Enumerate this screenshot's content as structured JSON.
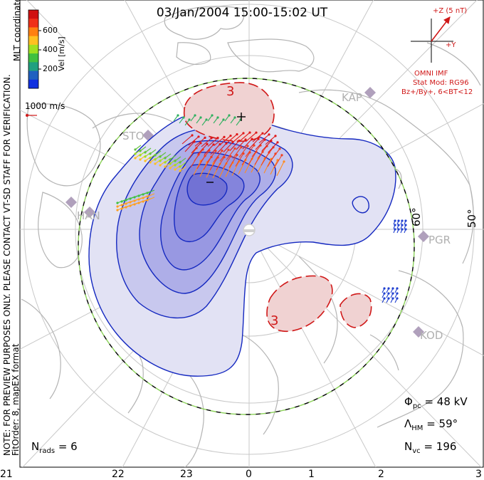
{
  "title": "03/Jan/2004 15:00-15:02 UT",
  "mlt_label": "MLT coordinates",
  "notice": "NOTE: FOR PREVIEW PURPOSES ONLY. PLEASE CONTACT VT-SD STAFF FOR VERIFICATION.",
  "fit_label": "FitOrder: 8, mapEX format",
  "velocity_scale": {
    "label": "Vel [m/s]",
    "ticks": [
      "600",
      "400",
      "200"
    ],
    "colors": [
      "#d01010",
      "#f03018",
      "#ff8010",
      "#ffc020",
      "#a0e020",
      "#40c040",
      "#20a080",
      "#2060c0",
      "#1030e0"
    ],
    "reference_label": "1000 m/s"
  },
  "imf": {
    "z_label": "+Z (5 nT)",
    "y_label": "+Y",
    "source": "OMNI IMF",
    "model": "Stat Mod: RG96",
    "condition": "Bz+/By+, 6<BT<12",
    "color": "#d01818"
  },
  "latitude_labels": [
    "60°",
    "50°"
  ],
  "contour_labels": [
    "3",
    "3"
  ],
  "stations": [
    "KAP",
    "STO",
    "HAN",
    "PGR",
    "KOD"
  ],
  "stats": {
    "phi_pc_symbol": "Φ",
    "phi_pc_sub": "pc",
    "phi_pc_value": "= 48 kV",
    "lambda_symbol": "Λ",
    "lambda_sub": "HM",
    "lambda_value": "= 59°",
    "nrads_symbol": "N",
    "nrads_sub": "rads",
    "nrads_value": "= 6",
    "nvc_symbol": "N",
    "nvc_sub": "vc",
    "nvc_value": "= 196"
  },
  "mlt_hours": [
    "21",
    "22",
    "23",
    "0",
    "1",
    "2",
    "3"
  ],
  "colors": {
    "negative_cell": "#8c8ce6",
    "positive_cell": "#f0c8c8",
    "negative_contour": "#1428c0",
    "positive_contour": "#d01818",
    "coastline": "#b4b4b4",
    "grid": "#c8c8c8",
    "boundary_dash": "#8cd25a"
  }
}
